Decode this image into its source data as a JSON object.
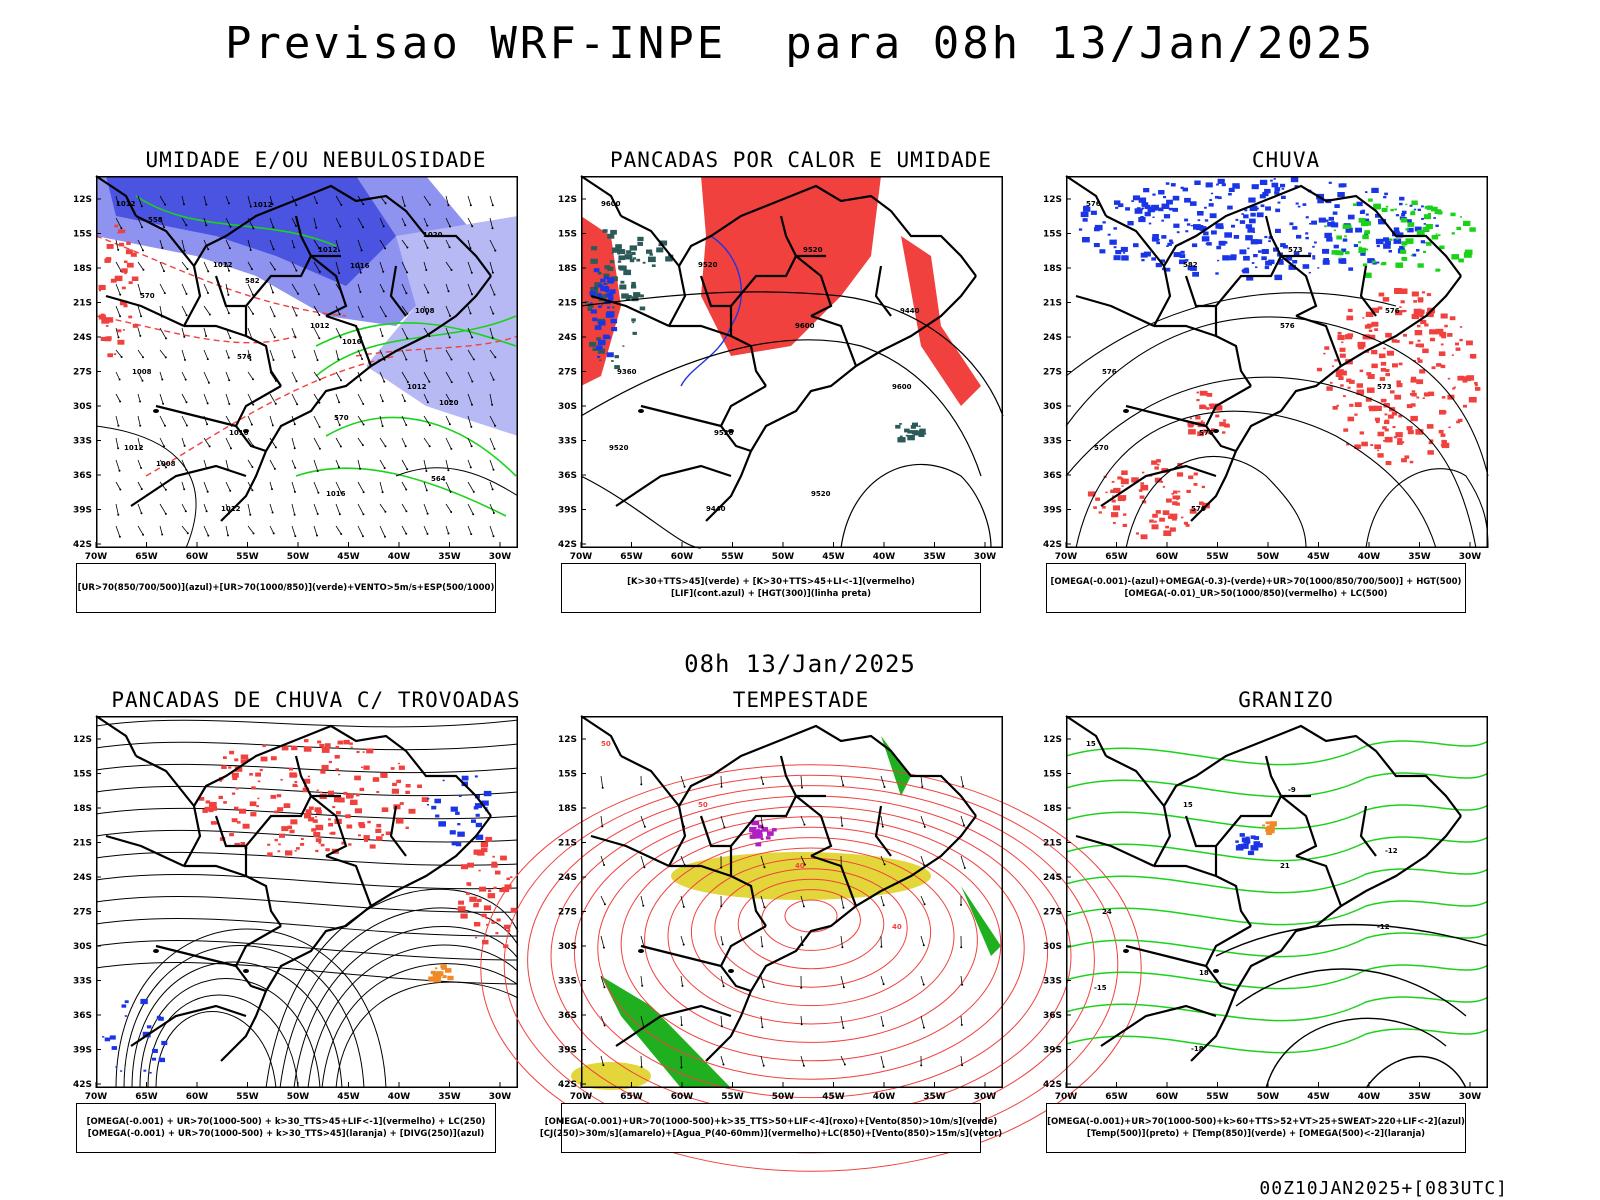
{
  "header": {
    "title": "Previsao WRF-INPE  para 08h 13/Jan/2025"
  },
  "middle_title": "08h 13/Jan/2025",
  "footer": "00Z10JAN2025+[083UTC]",
  "axes": {
    "lat_labels": [
      "12S",
      "15S",
      "18S",
      "21S",
      "24S",
      "27S",
      "30S",
      "33S",
      "36S",
      "39S",
      "42S"
    ],
    "lon_labels": [
      "70W",
      "65W",
      "60W",
      "55W",
      "50W",
      "45W",
      "40W",
      "35W",
      "30W"
    ]
  },
  "panels": [
    {
      "title": "UMIDADE E/OU NEBULOSIDADE",
      "legend": [
        "[UR>70(850/700/500)](azul)+[UR>70(1000/850)](verde)+VENTO>5m/s+ESP(500/1000)"
      ],
      "contour_labels": [
        "1012",
        "1012",
        "1012",
        "1012",
        "1012",
        "1012",
        "1012",
        "1008",
        "1008",
        "1016",
        "1016",
        "1020",
        "570",
        "576",
        "570",
        "564",
        "558",
        "582",
        "1016",
        "1020",
        "1008",
        "1012",
        "1016"
      ]
    },
    {
      "title": "PANCADAS POR CALOR E UMIDADE",
      "legend": [
        "[K>30+TTS>45](verde) + [K>30+TTS>45+LI<-1](vermelho)",
        "[LIF](cont.azul) + [HGT(300)](linha preta)"
      ],
      "contour_labels": [
        "9600",
        "9520",
        "9600",
        "9600",
        "9520",
        "9440",
        "9520",
        "9440",
        "9360",
        "9520",
        "9520"
      ]
    },
    {
      "title": "CHUVA",
      "legend": [
        "[OMEGA(-0.001)-(azul)+OMEGA(-0.3)-(verde)+UR>70(1000/850/700/500)] + HGT(500)",
        "[OMEGA(-0.01)_UR>50(1000/850)(vermelho) + LC(500)"
      ],
      "contour_labels": [
        "576",
        "582",
        "576",
        "573",
        "570",
        "576",
        "573",
        "576",
        "576",
        "576"
      ]
    },
    {
      "title": "PANCADAS DE CHUVA C/ TROVOADAS",
      "legend": [
        "[OMEGA(-0.001) + UR>70(1000-500) + k>30_TTS>45+LIF<-1](vermelho) + LC(250)",
        "[OMEGA(-0.001) + UR>70(1000-500) + k>30_TTS>45](laranja) + [DIVG(250)](azul)"
      ],
      "contour_labels": []
    },
    {
      "title": "TEMPESTADE",
      "legend": [
        "[OMEGA(-0.001)+UR>70(1000-500)+k>35_TTS>50+LIF<-4](roxo)+[Vento(850)>10m/s](verde)",
        "[CJ(250)>30m/s](amarelo)+[Agua_P(40-60mm)](vermelho)+LC(850)+[Vento(850)>15m/s](vetor)"
      ],
      "contour_labels": [
        "50",
        "50",
        "40",
        "40"
      ]
    },
    {
      "title": "GRANIZO",
      "legend": [
        "[OMEGA(-0.001)+UR>70(1000-500)+k>60+TTS>52+VT>25+SWEAT>220+LIF<-2](azul)",
        "[Temp(500)](preto) + [Temp(850)](verde) + [OMEGA(500)<-2](laranja)"
      ],
      "contour_labels": [
        "15",
        "15",
        "21",
        "-12",
        "-15",
        "-18",
        "-9",
        "-12",
        "24",
        "18"
      ]
    }
  ]
}
